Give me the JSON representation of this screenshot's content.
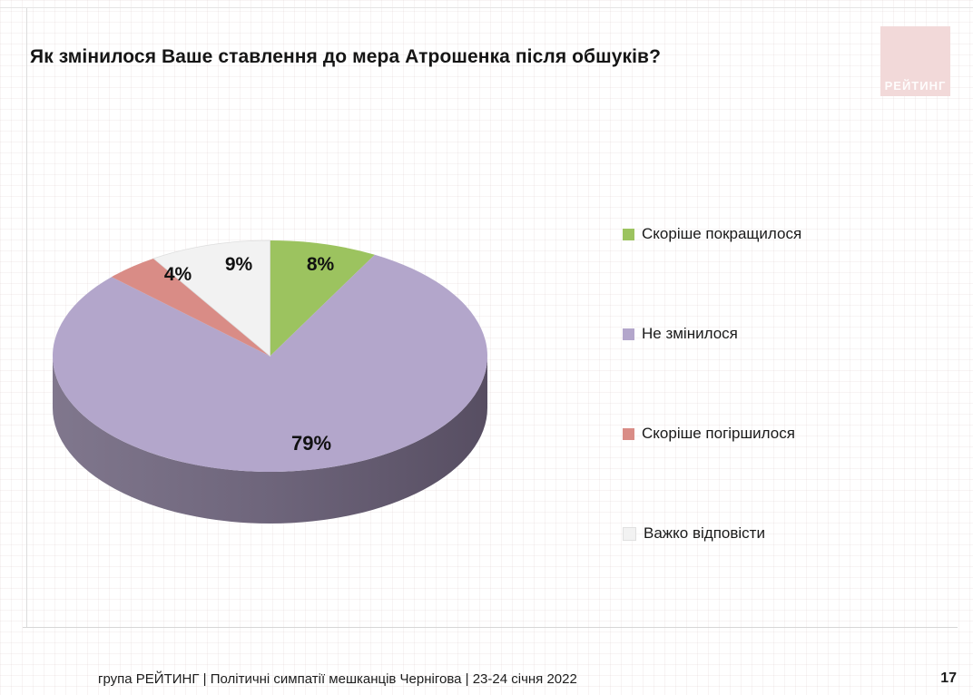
{
  "slide": {
    "title": "Як змінилося Ваше ставлення до мера Атрошенка після обшуків?",
    "logo_text": "РЕЙТИНГ",
    "footer": "група РЕЙТИНГ  | Політичні симпатії мешканців Чернігова | 23-24 січня 2022",
    "page_number": "17"
  },
  "chart_data": {
    "type": "pie",
    "style": "3d",
    "title": "Як змінилося Ваше ставлення до мера Атрошенка після обшуків?",
    "labels": [
      "Скоріше покращилося",
      "Не змінилося",
      "Скоріше погіршилося",
      "Важко відповісти"
    ],
    "values": [
      8,
      79,
      4,
      9
    ],
    "value_labels": [
      "8%",
      "79%",
      "4%",
      "9%"
    ],
    "colors": [
      "#9cc35f",
      "#b3a6cb",
      "#d98c86",
      "#f2f2f2"
    ],
    "side_colors": [
      "#627a3c",
      "#6e657b",
      "#8a5852",
      "#bdbdbd"
    ],
    "start_angle_deg": 0,
    "direction": "clockwise",
    "legend_position": "right",
    "grid": false
  },
  "accents": {
    "logo_bg": "#f2d9d9",
    "grid_line": "#d0bcbc"
  }
}
